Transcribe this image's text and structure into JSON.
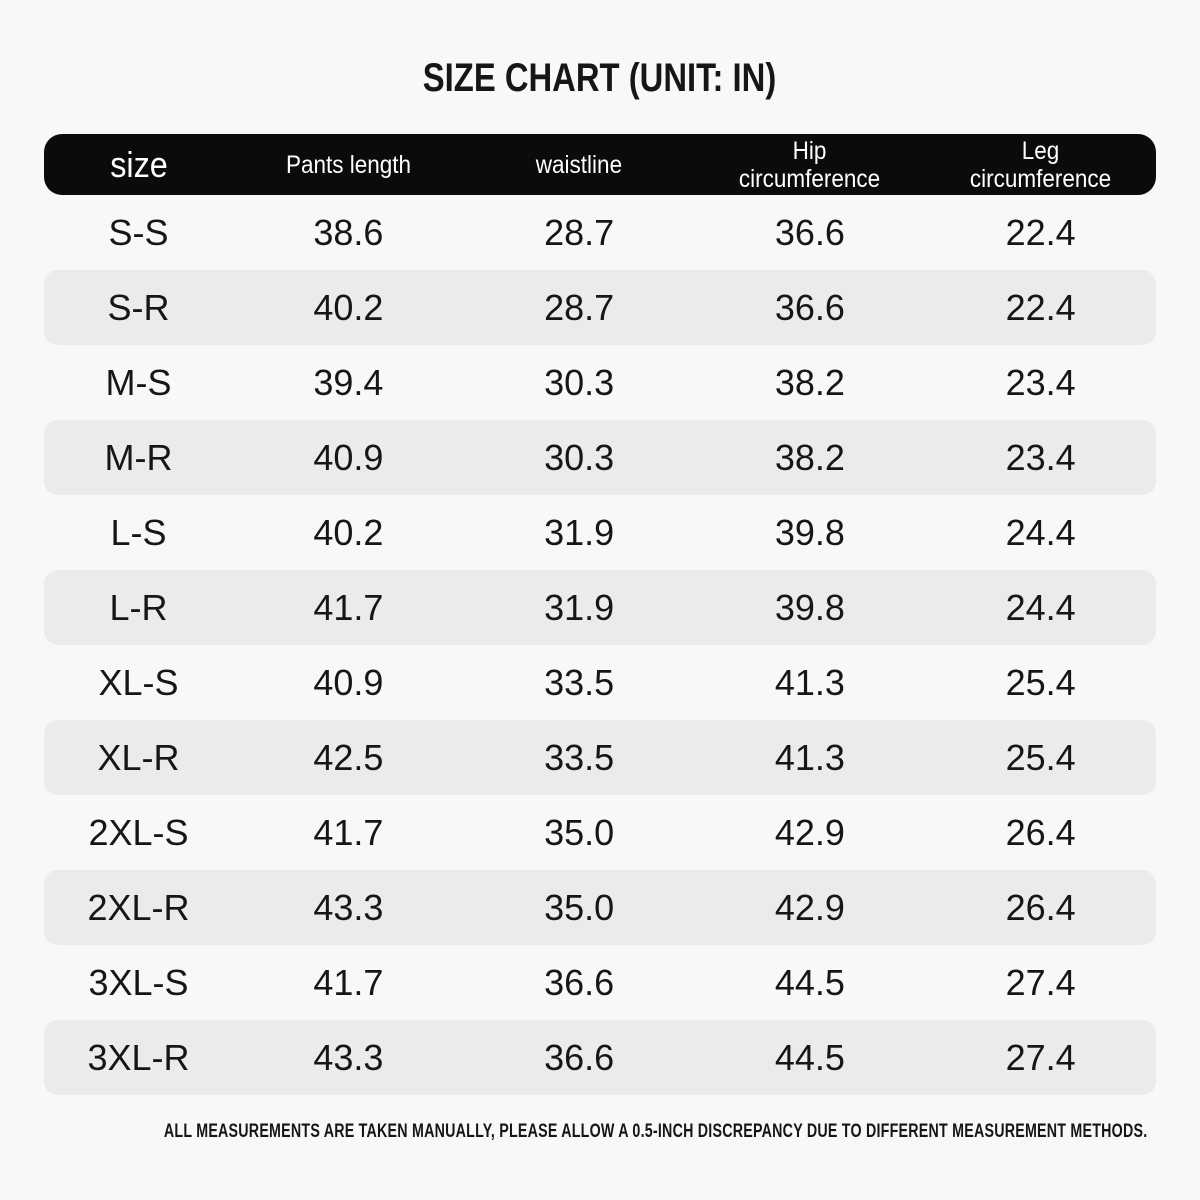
{
  "title": "SIZE CHART (UNIT: IN)",
  "unit": "IN",
  "colors": {
    "page_bg": "#f8f8f8",
    "header_bg": "#0b0b0b",
    "header_text": "#ffffff",
    "row_alt_bg": "#ebebeb",
    "text": "#161616"
  },
  "footer_note": "ALL MEASUREMENTS ARE TAKEN MANUALLY, PLEASE ALLOW A 0.5-INCH DISCREPANCY DUE TO DIFFERENT MEASUREMENT METHODS.",
  "chart_data": {
    "type": "table",
    "title": "SIZE CHART (UNIT: IN)",
    "unit": "IN",
    "columns": [
      "size",
      "Pants length",
      "waistline",
      "Hip\ncircumference",
      "Leg\ncircumference"
    ],
    "rows": [
      [
        "S-S",
        "38.6",
        "28.7",
        "36.6",
        "22.4"
      ],
      [
        "S-R",
        "40.2",
        "28.7",
        "36.6",
        "22.4"
      ],
      [
        "M-S",
        "39.4",
        "30.3",
        "38.2",
        "23.4"
      ],
      [
        "M-R",
        "40.9",
        "30.3",
        "38.2",
        "23.4"
      ],
      [
        "L-S",
        "40.2",
        "31.9",
        "39.8",
        "24.4"
      ],
      [
        "L-R",
        "41.7",
        "31.9",
        "39.8",
        "24.4"
      ],
      [
        "XL-S",
        "40.9",
        "33.5",
        "41.3",
        "25.4"
      ],
      [
        "XL-R",
        "42.5",
        "33.5",
        "41.3",
        "25.4"
      ],
      [
        "2XL-S",
        "41.7",
        "35.0",
        "42.9",
        "26.4"
      ],
      [
        "2XL-R",
        "43.3",
        "35.0",
        "42.9",
        "26.4"
      ],
      [
        "3XL-S",
        "41.7",
        "36.6",
        "44.5",
        "27.4"
      ],
      [
        "3XL-R",
        "43.3",
        "36.6",
        "44.5",
        "27.4"
      ]
    ],
    "layout": {
      "striped_rows": "even rows (2nd, 4th, ...) have light gray rounded background",
      "header_style": "black rounded bar with white text",
      "footnote": "ALL MEASUREMENTS ARE TAKEN MANUALLY, PLEASE ALLOW A 0.5-INCH DISCREPANCY DUE TO DIFFERENT MEASUREMENT METHODS."
    }
  }
}
